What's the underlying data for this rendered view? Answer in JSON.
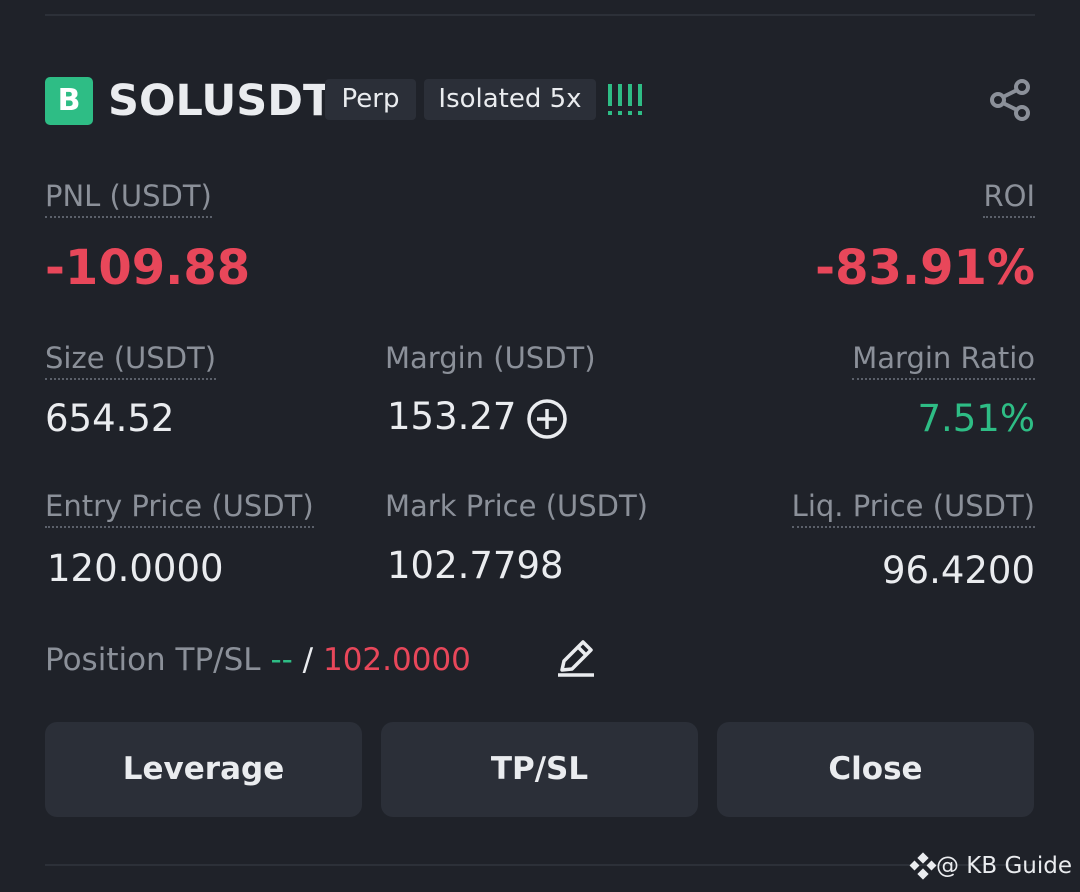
{
  "header": {
    "badge": "B",
    "symbol": "SOLUSDT",
    "tags": [
      "Perp",
      "Isolated 5x"
    ]
  },
  "pnl": {
    "label": "PNL (USDT)",
    "value": "-109.88"
  },
  "roi": {
    "label": "ROI",
    "value": "-83.91%"
  },
  "fields": [
    {
      "label": "Size (USDT)",
      "value": "654.52"
    },
    {
      "label": "Margin (USDT)",
      "value": "153.27"
    },
    {
      "label": "Margin Ratio",
      "value": "7.51%"
    },
    {
      "label": "Entry Price (USDT)",
      "value": "120.0000"
    },
    {
      "label": "Mark Price (USDT)",
      "value": "102.7798"
    },
    {
      "label": "Liq. Price (USDT)",
      "value": "96.4200"
    }
  ],
  "tpsl": {
    "label": "Position TP/SL",
    "tp": "--",
    "separator": "/",
    "sl": "102.0000"
  },
  "buttons": [
    "Leverage",
    "TP/SL",
    "Close"
  ],
  "watermark": "@ KB Guide"
}
